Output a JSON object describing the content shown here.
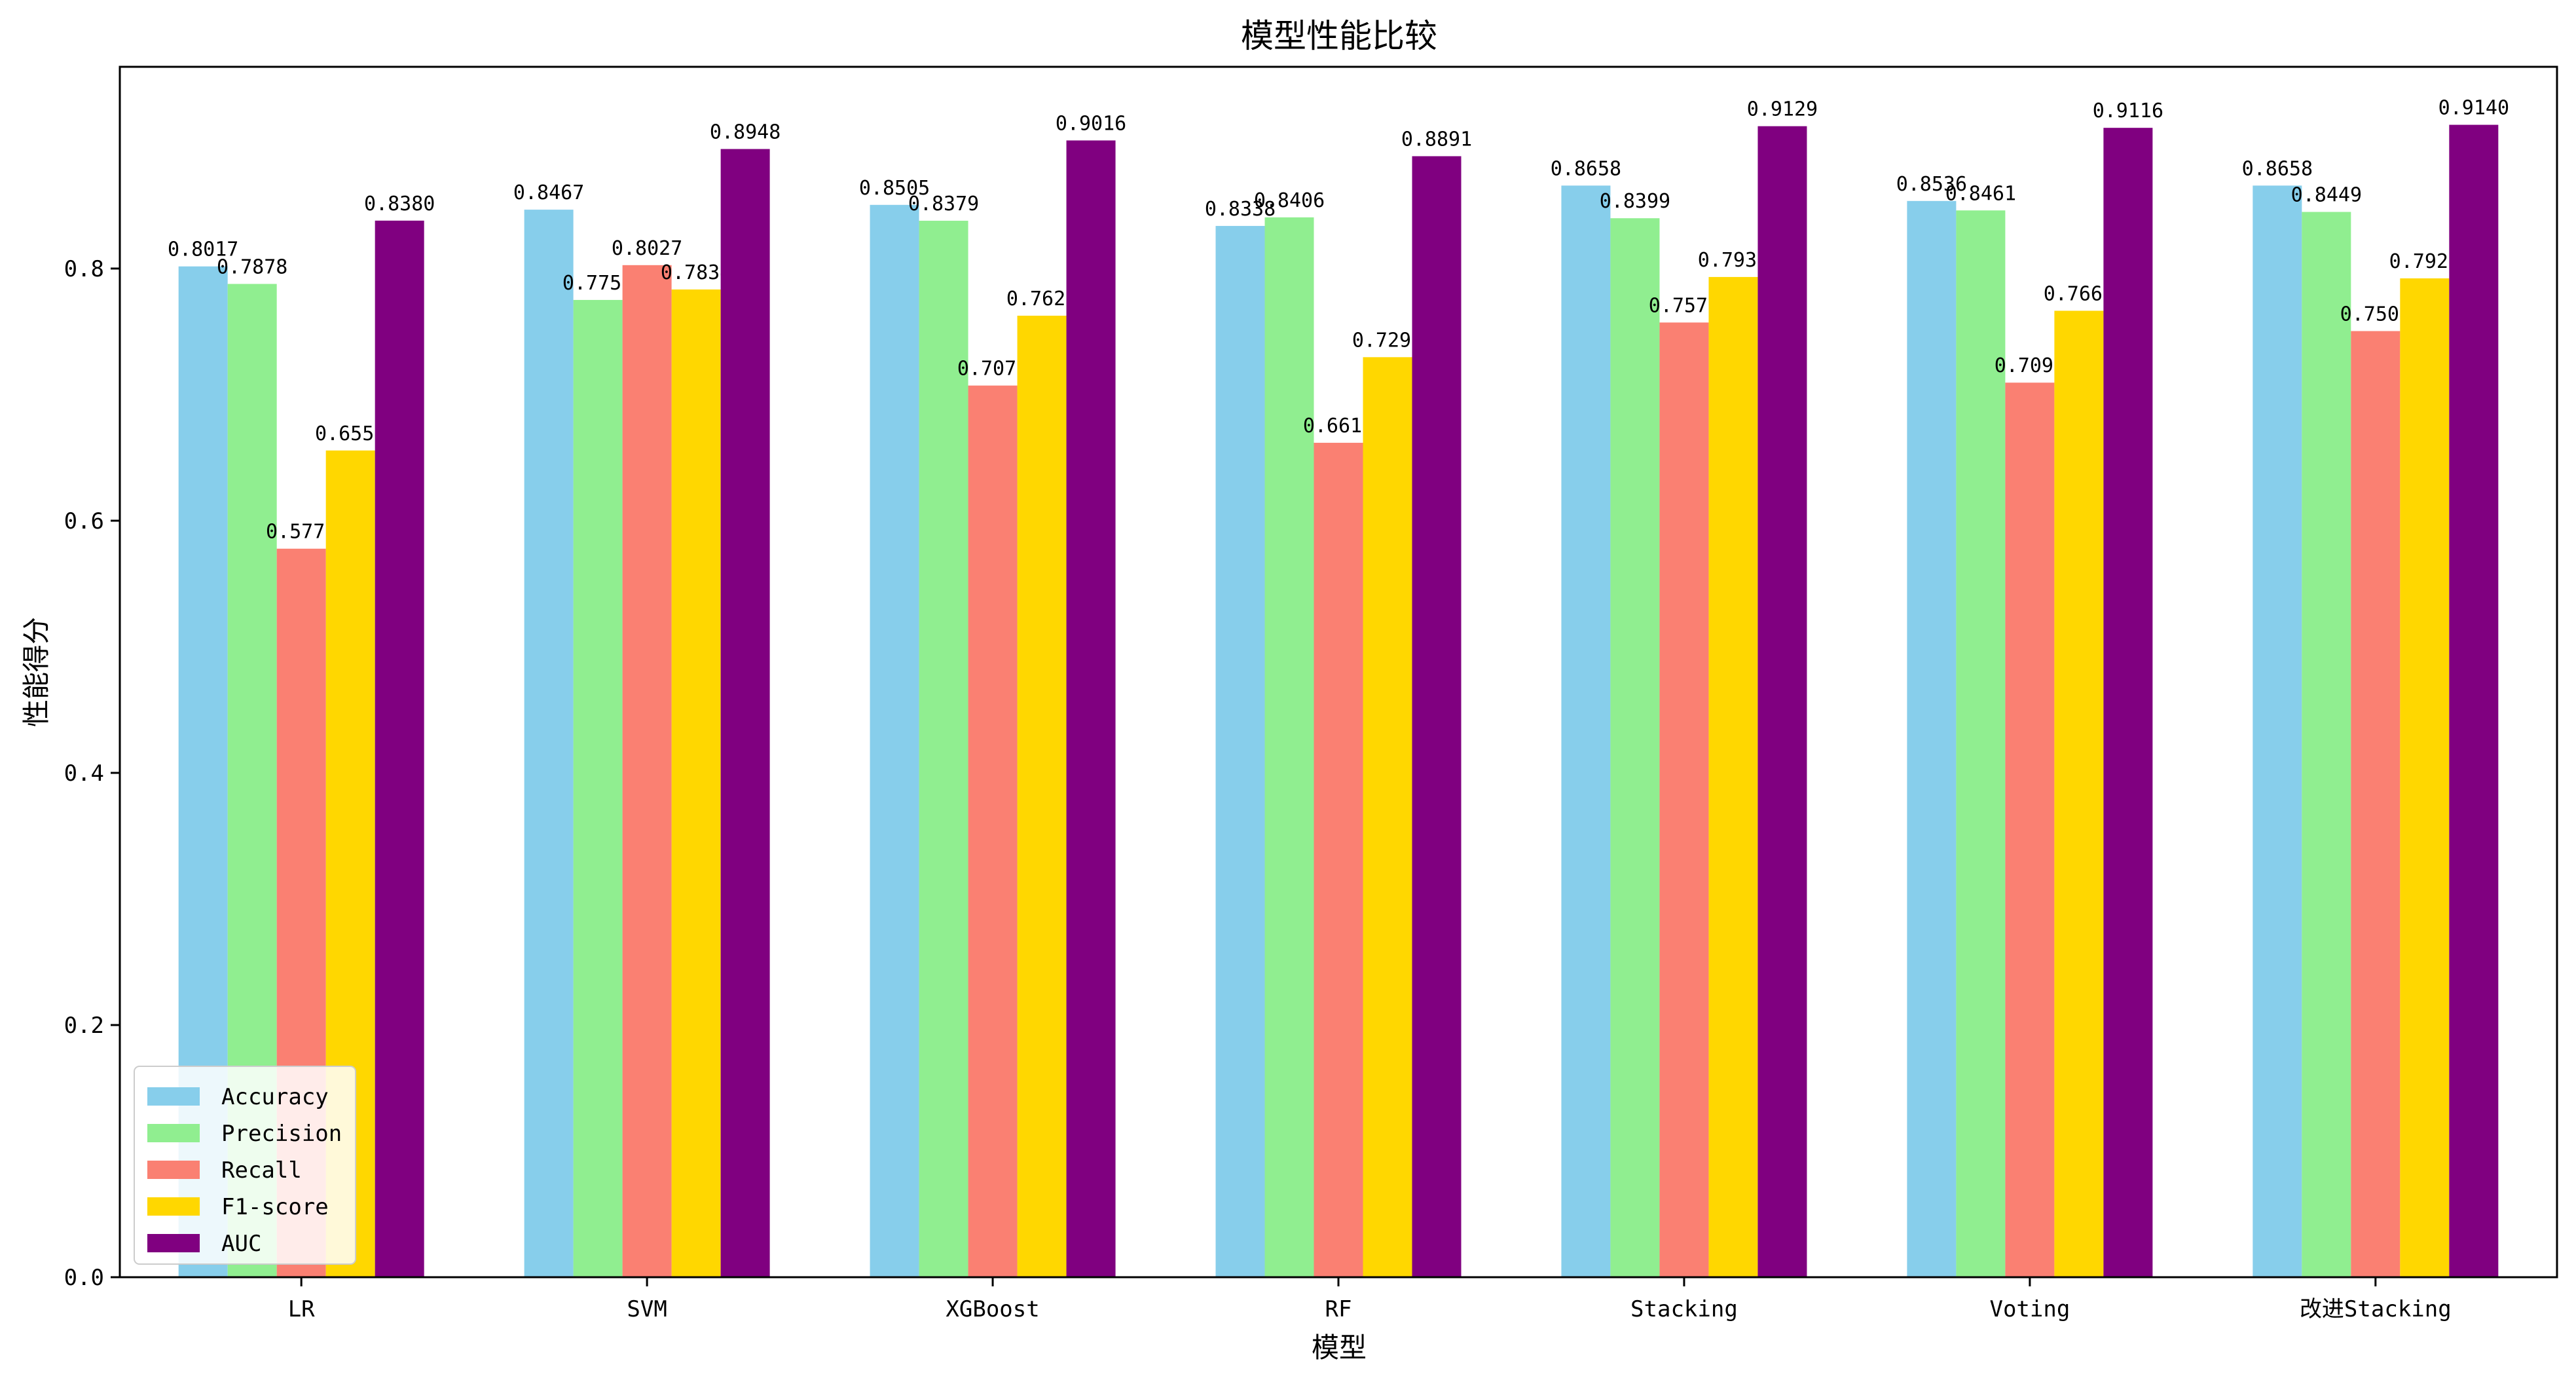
{
  "chart_data": {
    "type": "bar",
    "title": "模型性能比较",
    "xlabel": "模型",
    "ylabel": "性能得分",
    "ylim": [
      0,
      0.96
    ],
    "yticks": [
      "0.0",
      "0.2",
      "0.4",
      "0.6",
      "0.8"
    ],
    "grid": false,
    "legend_position": "lower-left",
    "categories": [
      "LR",
      "SVM",
      "XGBoost",
      "RF",
      "Stacking",
      "Voting",
      "改进Stacking"
    ],
    "series": [
      {
        "name": "Accuracy",
        "color": "#87CEEB",
        "values": [
          0.8017,
          0.8467,
          0.8505,
          0.8338,
          0.8658,
          0.8536,
          0.8658
        ]
      },
      {
        "name": "Precision",
        "color": "#90EE90",
        "values": [
          0.7878,
          0.7751,
          0.8379,
          0.8406,
          0.8399,
          0.8461,
          0.8449
        ]
      },
      {
        "name": "Recall",
        "color": "#FA8072",
        "values": [
          0.5778,
          0.8027,
          0.7072,
          0.6618,
          0.7572,
          0.7095,
          0.7504
        ]
      },
      {
        "name": "F1-score",
        "color": "#FFD700",
        "values": [
          0.6557,
          0.7834,
          0.7626,
          0.7297,
          0.7933,
          0.7665,
          0.7922
        ]
      },
      {
        "name": "AUC",
        "color": "#800080",
        "values": [
          0.838,
          0.8948,
          0.9016,
          0.8891,
          0.9129,
          0.9116,
          0.914
        ]
      }
    ]
  }
}
